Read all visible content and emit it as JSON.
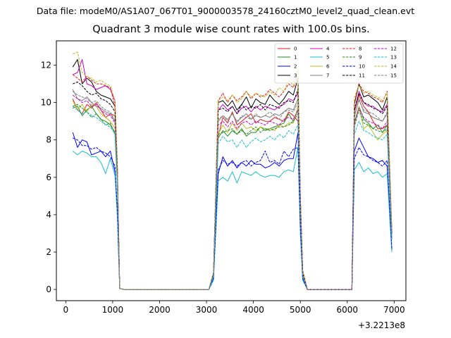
{
  "header": {
    "suptitle": "Data file: modeM0/AS1A07_067T01_9000003578_24160cztM0_level2_quad_clean.evt"
  },
  "chart_data": {
    "type": "line",
    "title": "Quadrant 3 module wise count rates with 100.0s bins.",
    "xlabel": "",
    "ylabel": "",
    "x_offset_label": "+3.2213e8",
    "xlim": [
      -200,
      7250
    ],
    "ylim": [
      -0.6,
      13.3
    ],
    "xticks": [
      0,
      1000,
      2000,
      3000,
      4000,
      5000,
      6000,
      7000
    ],
    "yticks": [
      0,
      2,
      4,
      6,
      8,
      10,
      12
    ],
    "legend_position": "top-right",
    "x": [
      150,
      250,
      350,
      450,
      550,
      650,
      750,
      850,
      950,
      1050,
      1100,
      1150,
      1250,
      1350,
      1450,
      1550,
      1650,
      1750,
      1850,
      1950,
      2050,
      2150,
      2250,
      2350,
      2450,
      2550,
      2650,
      2750,
      2850,
      2950,
      3050,
      3150,
      3250,
      3350,
      3450,
      3550,
      3650,
      3750,
      3850,
      3950,
      4050,
      4150,
      4250,
      4350,
      4450,
      4550,
      4650,
      4750,
      4850,
      4950,
      5000,
      5050,
      5150,
      5250,
      5350,
      5450,
      5550,
      5650,
      5750,
      5850,
      5950,
      6050,
      6100,
      6150,
      6250,
      6350,
      6450,
      6550,
      6650,
      6750,
      6850,
      6950
    ],
    "series": [
      {
        "name": "0",
        "color": "#e41a1c",
        "style": "solid",
        "values": [
          10.2,
          9.6,
          9.4,
          9.9,
          9.7,
          10.0,
          9.6,
          9.2,
          9.4,
          9.3,
          6.0,
          0.05,
          0,
          0,
          0,
          0,
          0,
          0,
          0,
          0,
          0,
          0,
          0,
          0,
          0,
          0,
          0,
          0,
          0,
          0,
          0,
          0.8,
          8.2,
          9.2,
          8.9,
          9.5,
          8.8,
          9.0,
          9.2,
          9.4,
          8.9,
          9.1,
          9.0,
          9.0,
          9.2,
          9.1,
          9.0,
          9.5,
          9.3,
          9.0,
          4.5,
          0.9,
          0,
          0,
          0,
          0,
          0,
          0,
          0,
          0,
          0,
          0,
          0,
          9.5,
          10.4,
          9.8,
          9.5,
          9.0,
          8.6,
          8.6,
          8.8,
          2.8
        ]
      },
      {
        "name": "1",
        "color": "#1f8c1f",
        "style": "solid",
        "values": [
          9.7,
          9.8,
          9.3,
          9.6,
          9.8,
          9.4,
          9.1,
          9.0,
          8.8,
          8.4,
          5.8,
          0.05,
          0,
          0,
          0,
          0,
          0,
          0,
          0,
          0,
          0,
          0,
          0,
          0,
          0,
          0,
          0,
          0,
          0,
          0,
          0,
          0.7,
          8.1,
          8.5,
          8.2,
          8.5,
          8.3,
          8.6,
          8.2,
          8.4,
          8.4,
          8.7,
          8.5,
          8.6,
          8.7,
          8.8,
          8.9,
          9.4,
          9.0,
          9.6,
          4.4,
          0.8,
          0,
          0,
          0,
          0,
          0,
          0,
          0,
          0,
          0,
          0,
          0,
          8.9,
          9.8,
          9.1,
          8.9,
          8.6,
          8.8,
          8.4,
          8.8,
          2.7
        ]
      },
      {
        "name": "2",
        "color": "#0000ff",
        "style": "solid",
        "values": [
          8.4,
          7.6,
          8.0,
          7.9,
          7.2,
          7.3,
          7.4,
          7.1,
          7.4,
          6.3,
          4.0,
          0.05,
          0,
          0,
          0,
          0,
          0,
          0,
          0,
          0,
          0,
          0,
          0,
          0,
          0,
          0,
          0,
          0,
          0,
          0,
          0,
          0.6,
          6.2,
          7.1,
          6.6,
          6.9,
          6.5,
          6.8,
          6.6,
          6.9,
          6.7,
          6.7,
          6.5,
          6.6,
          6.8,
          6.6,
          6.9,
          7.0,
          7.0,
          8.4,
          3.3,
          0.6,
          0,
          0,
          0,
          0,
          0,
          0,
          0,
          0,
          0,
          0,
          0,
          7.4,
          8.1,
          7.6,
          7.1,
          7.0,
          6.8,
          6.9,
          6.6,
          2.1
        ]
      },
      {
        "name": "3",
        "color": "#000000",
        "style": "solid",
        "values": [
          11.9,
          12.3,
          11.0,
          11.3,
          11.1,
          10.6,
          10.4,
          10.3,
          10.2,
          9.8,
          6.4,
          0.05,
          0,
          0,
          0,
          0,
          0,
          0,
          0,
          0,
          0,
          0,
          0,
          0,
          0,
          0,
          0,
          0,
          0,
          0,
          0,
          0.9,
          10.0,
          10.1,
          9.8,
          10.1,
          9.6,
          9.9,
          10.3,
          9.7,
          10.2,
          10.0,
          9.9,
          10.4,
          10.1,
          9.9,
          10.2,
          10.6,
          10.4,
          11.3,
          5.0,
          1.0,
          0,
          0,
          0,
          0,
          0,
          0,
          0,
          0,
          0,
          0,
          0,
          9.9,
          11.0,
          10.3,
          10.4,
          10.2,
          10.0,
          9.6,
          10.3,
          3.1
        ]
      },
      {
        "name": "4",
        "color": "#cc00cc",
        "style": "solid",
        "values": [
          11.5,
          11.6,
          12.3,
          11.0,
          10.9,
          10.7,
          10.8,
          10.9,
          10.7,
          10.1,
          6.6,
          0.05,
          0,
          0,
          0,
          0,
          0,
          0,
          0,
          0,
          0,
          0,
          0,
          0,
          0,
          0,
          0,
          0,
          0,
          0,
          0,
          0.9,
          9.6,
          9.9,
          9.6,
          9.8,
          9.4,
          9.7,
          9.8,
          9.5,
          9.8,
          9.6,
          9.8,
          9.7,
          9.6,
          9.8,
          9.9,
          10.2,
          10.1,
          10.5,
          4.8,
          0.9,
          0,
          0,
          0,
          0,
          0,
          0,
          0,
          0,
          0,
          0,
          0,
          9.5,
          10.6,
          10.0,
          9.8,
          9.8,
          9.6,
          9.5,
          9.9,
          3.0
        ]
      },
      {
        "name": "5",
        "color": "#17becf",
        "style": "solid",
        "values": [
          7.4,
          7.2,
          7.4,
          7.3,
          7.1,
          7.1,
          6.8,
          6.2,
          7.0,
          6.1,
          3.9,
          0.05,
          0,
          0,
          0,
          0,
          0,
          0,
          0,
          0,
          0,
          0,
          0,
          0,
          0,
          0,
          0,
          0,
          0,
          0,
          0,
          0.5,
          5.8,
          6.0,
          5.8,
          6.3,
          5.7,
          6.3,
          6.2,
          6.1,
          6.3,
          6.1,
          6.0,
          6.1,
          6.1,
          6.0,
          6.3,
          6.4,
          6.3,
          7.6,
          3.0,
          0.5,
          0,
          0,
          0,
          0,
          0,
          0,
          0,
          0,
          0,
          0,
          0,
          6.4,
          6.8,
          6.3,
          6.5,
          6.2,
          6.3,
          6.0,
          6.2,
          2.0
        ]
      },
      {
        "name": "6",
        "color": "#bcbd22",
        "style": "solid",
        "values": [
          10.1,
          9.6,
          9.9,
          9.5,
          9.9,
          9.8,
          9.4,
          9.2,
          9.0,
          8.6,
          5.9,
          0.05,
          0,
          0,
          0,
          0,
          0,
          0,
          0,
          0,
          0,
          0,
          0,
          0,
          0,
          0,
          0,
          0,
          0,
          0,
          0,
          0.8,
          8.3,
          8.8,
          8.4,
          8.9,
          8.5,
          8.9,
          8.6,
          8.7,
          8.5,
          8.7,
          8.6,
          8.6,
          8.5,
          8.8,
          8.7,
          8.9,
          8.9,
          9.8,
          4.5,
          0.8,
          0,
          0,
          0,
          0,
          0,
          0,
          0,
          0,
          0,
          0,
          0,
          8.8,
          9.8,
          8.6,
          8.8,
          8.4,
          8.0,
          8.3,
          8.5,
          2.7
        ]
      },
      {
        "name": "7",
        "color": "#7f7f7f",
        "style": "solid",
        "values": [
          10.7,
          10.2,
          10.1,
          10.3,
          10.0,
          9.8,
          9.7,
          9.5,
          9.4,
          9.0,
          6.1,
          0.05,
          0,
          0,
          0,
          0,
          0,
          0,
          0,
          0,
          0,
          0,
          0,
          0,
          0,
          0,
          0,
          0,
          0,
          0,
          0,
          0.8,
          9.0,
          9.3,
          9.1,
          9.4,
          9.0,
          9.2,
          9.4,
          9.1,
          9.3,
          9.2,
          9.3,
          9.2,
          9.4,
          9.3,
          9.5,
          9.7,
          9.6,
          10.2,
          4.6,
          0.8,
          0,
          0,
          0,
          0,
          0,
          0,
          0,
          0,
          0,
          0,
          0,
          9.2,
          10.2,
          9.5,
          9.4,
          9.2,
          9.1,
          9.0,
          9.4,
          2.9
        ]
      },
      {
        "name": "8",
        "color": "#e41a1c",
        "style": "dashed",
        "values": [
          11.5,
          11.3,
          11.1,
          11.4,
          11.2,
          11.0,
          11.0,
          10.9,
          10.8,
          9.8,
          6.5,
          0.05,
          0,
          0,
          0,
          0,
          0,
          0,
          0,
          0,
          0,
          0,
          0,
          0,
          0,
          0,
          0,
          0,
          0,
          0,
          0,
          0.9,
          10.1,
          10.5,
          10.0,
          10.4,
          10.1,
          10.3,
          10.6,
          10.2,
          10.5,
          10.3,
          10.4,
          10.7,
          10.5,
          10.3,
          10.6,
          11.0,
          10.8,
          11.3,
          5.0,
          1.0,
          0,
          0,
          0,
          0,
          0,
          0,
          0,
          0,
          0,
          0,
          0,
          10.0,
          11.0,
          10.6,
          10.5,
          10.3,
          10.2,
          10.0,
          10.6,
          3.2
        ]
      },
      {
        "name": "9",
        "color": "#1f8c1f",
        "style": "dashed",
        "values": [
          9.8,
          9.9,
          9.7,
          9.5,
          9.2,
          9.4,
          9.1,
          8.8,
          8.9,
          8.3,
          5.6,
          0.05,
          0,
          0,
          0,
          0,
          0,
          0,
          0,
          0,
          0,
          0,
          0,
          0,
          0,
          0,
          0,
          0,
          0,
          0,
          0,
          0.7,
          8.3,
          8.4,
          8.5,
          8.6,
          8.3,
          8.5,
          8.3,
          8.5,
          8.7,
          8.4,
          8.6,
          8.5,
          8.6,
          8.7,
          8.7,
          8.8,
          9.0,
          9.4,
          4.4,
          0.8,
          0,
          0,
          0,
          0,
          0,
          0,
          0,
          0,
          0,
          0,
          0,
          8.7,
          9.6,
          8.9,
          8.8,
          8.6,
          8.5,
          8.4,
          8.6,
          2.7
        ]
      },
      {
        "name": "10",
        "color": "#0000ff",
        "style": "dashed",
        "values": [
          8.1,
          8.0,
          7.7,
          7.7,
          7.5,
          7.6,
          7.4,
          7.3,
          7.1,
          6.6,
          4.2,
          0.05,
          0,
          0,
          0,
          0,
          0,
          0,
          0,
          0,
          0,
          0,
          0,
          0,
          0,
          0,
          0,
          0,
          0,
          0,
          0,
          0.6,
          6.4,
          6.9,
          6.7,
          6.8,
          6.6,
          6.8,
          6.9,
          6.6,
          6.8,
          6.9,
          7.4,
          6.8,
          6.9,
          6.7,
          7.4,
          7.1,
          7.5,
          7.6,
          3.4,
          0.6,
          0,
          0,
          0,
          0,
          0,
          0,
          0,
          0,
          0,
          0,
          0,
          7.0,
          7.6,
          7.2,
          7.1,
          6.9,
          6.8,
          6.6,
          6.9,
          2.2
        ]
      },
      {
        "name": "11",
        "color": "#000000",
        "style": "dashed",
        "values": [
          11.0,
          11.1,
          10.9,
          10.6,
          10.4,
          10.5,
          10.2,
          10.1,
          9.9,
          9.5,
          6.3,
          0.05,
          0,
          0,
          0,
          0,
          0,
          0,
          0,
          0,
          0,
          0,
          0,
          0,
          0,
          0,
          0,
          0,
          0,
          0,
          0,
          0.9,
          9.6,
          9.7,
          9.5,
          9.8,
          9.4,
          9.9,
          9.6,
          9.8,
          9.7,
          9.9,
          9.6,
          9.9,
          9.8,
          9.7,
          10.0,
          10.1,
          10.0,
          10.7,
          4.8,
          0.9,
          0,
          0,
          0,
          0,
          0,
          0,
          0,
          0,
          0,
          0,
          0,
          9.6,
          10.5,
          10.0,
          9.9,
          9.7,
          9.6,
          9.4,
          9.8,
          3.0
        ]
      },
      {
        "name": "12",
        "color": "#cc00cc",
        "style": "dashed",
        "values": [
          10.4,
          10.2,
          10.0,
          10.1,
          9.8,
          9.9,
          9.6,
          9.4,
          9.3,
          8.9,
          6.0,
          0.05,
          0,
          0,
          0,
          0,
          0,
          0,
          0,
          0,
          0,
          0,
          0,
          0,
          0,
          0,
          0,
          0,
          0,
          0,
          0,
          0.8,
          8.8,
          9.0,
          8.7,
          9.0,
          8.6,
          8.9,
          9.0,
          8.8,
          9.0,
          8.9,
          8.8,
          9.0,
          8.9,
          8.8,
          9.1,
          9.2,
          9.1,
          9.6,
          4.5,
          0.8,
          0,
          0,
          0,
          0,
          0,
          0,
          0,
          0,
          0,
          0,
          0,
          8.9,
          9.7,
          9.2,
          9.0,
          8.9,
          8.8,
          8.6,
          9.0,
          2.8
        ]
      },
      {
        "name": "13",
        "color": "#17becf",
        "style": "dashed",
        "values": [
          9.8,
          9.6,
          9.4,
          9.5,
          9.3,
          9.2,
          9.0,
          8.8,
          8.7,
          8.3,
          5.5,
          0.05,
          0,
          0,
          0,
          0,
          0,
          0,
          0,
          0,
          0,
          0,
          0,
          0,
          0,
          0,
          0,
          0,
          0,
          0,
          0,
          0.7,
          7.8,
          8.2,
          7.9,
          8.0,
          7.6,
          8.0,
          7.6,
          7.9,
          8.1,
          7.9,
          8.0,
          8.2,
          8.0,
          8.3,
          8.1,
          8.5,
          8.3,
          8.8,
          4.2,
          0.7,
          0,
          0,
          0,
          0,
          0,
          0,
          0,
          0,
          0,
          0,
          0,
          8.3,
          9.0,
          8.5,
          8.4,
          8.2,
          8.1,
          8.0,
          8.3,
          2.6
        ]
      },
      {
        "name": "14",
        "color": "#bcbd22",
        "style": "dashed",
        "values": [
          12.6,
          12.7,
          11.6,
          11.4,
          11.3,
          11.1,
          11.2,
          11.0,
          10.9,
          10.1,
          6.8,
          0.05,
          0,
          0,
          0,
          0,
          0,
          0,
          0,
          0,
          0,
          0,
          0,
          0,
          0,
          0,
          0,
          0,
          0,
          0,
          0,
          0.9,
          10.1,
          10.3,
          10.1,
          10.4,
          10.0,
          10.2,
          10.6,
          10.3,
          10.5,
          10.4,
          10.3,
          10.6,
          10.4,
          10.8,
          10.6,
          11.2,
          10.9,
          11.8,
          5.1,
          1.0,
          0,
          0,
          0,
          0,
          0,
          0,
          0,
          0,
          0,
          0,
          0,
          10.3,
          10.9,
          10.5,
          10.6,
          10.4,
          10.3,
          10.1,
          10.5,
          3.2
        ]
      },
      {
        "name": "15",
        "color": "#7f7f7f",
        "style": "dashed",
        "values": [
          10.6,
          10.4,
          10.3,
          10.2,
          10.0,
          10.1,
          9.8,
          9.6,
          9.5,
          9.0,
          6.1,
          0.05,
          0,
          0,
          0,
          0,
          0,
          0,
          0,
          0,
          0,
          0,
          0,
          0,
          0,
          0,
          0,
          0,
          0,
          0,
          0,
          0.8,
          9.1,
          9.3,
          9.0,
          9.4,
          8.9,
          9.3,
          9.2,
          9.1,
          9.4,
          9.2,
          9.3,
          9.5,
          9.3,
          9.1,
          9.5,
          9.6,
          9.5,
          10.0,
          4.6,
          0.8,
          0,
          0,
          0,
          0,
          0,
          0,
          0,
          0,
          0,
          0,
          0,
          9.3,
          10.1,
          9.6,
          9.5,
          9.4,
          9.2,
          9.0,
          9.5,
          2.9
        ]
      }
    ]
  }
}
